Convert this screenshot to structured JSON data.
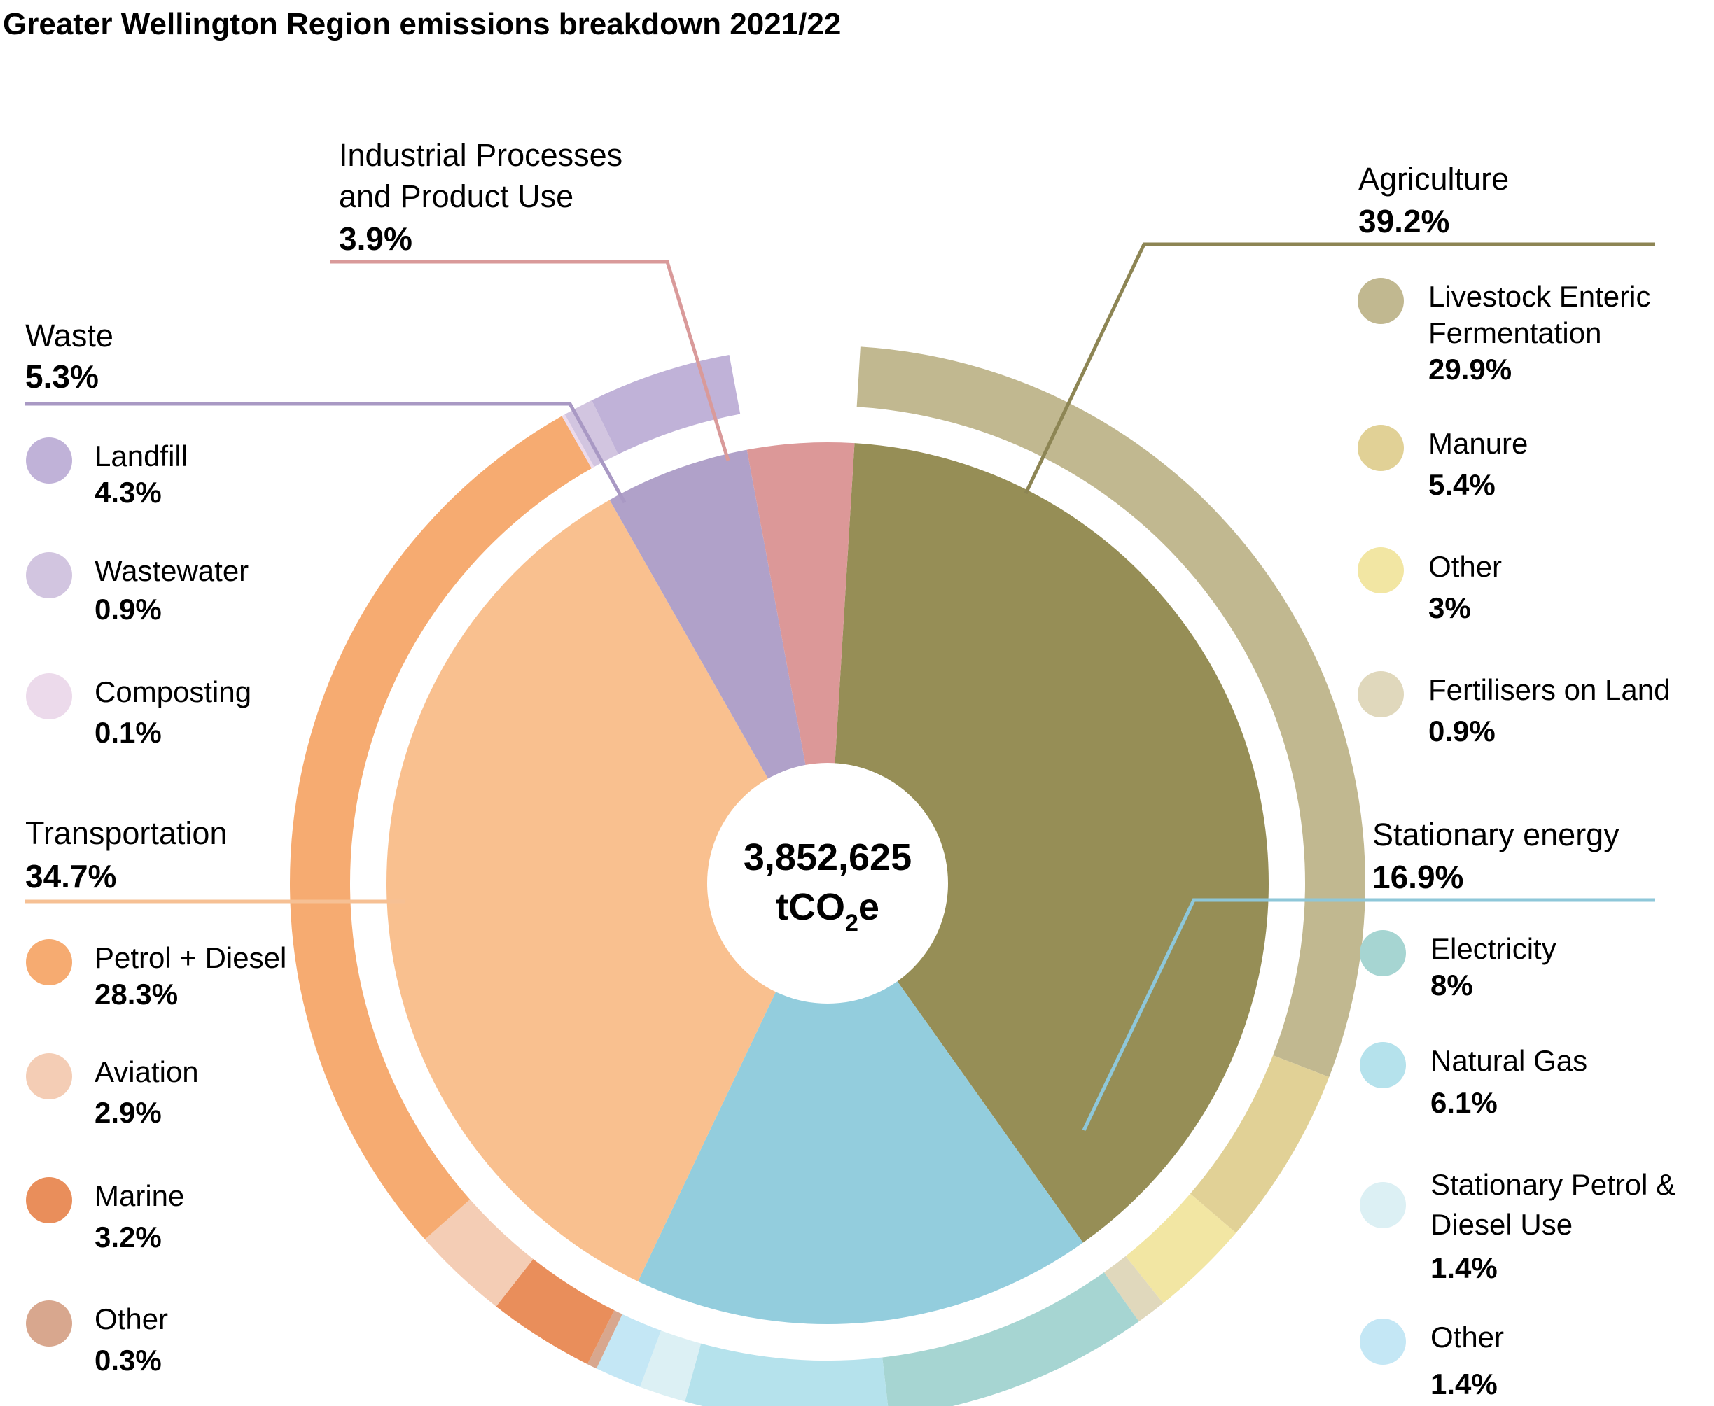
{
  "title": "Greater Wellington Region emissions breakdown 2021/22",
  "center": {
    "total": "3,852,625",
    "unit_prefix": "tCO",
    "unit_sub": "2",
    "unit_suffix": "e"
  },
  "colors": {
    "agriculture": "#968e56",
    "stationary": "#93cddd",
    "transport": "#f9c08f",
    "waste": "#b0a1c9",
    "ippu": "#dc9898"
  },
  "chart_data": {
    "type": "pie",
    "variant": "nested-donut",
    "total": "3,852,625 tCO2e",
    "groups": [
      {
        "key": "agriculture",
        "name": "Agriculture",
        "value": 39.2,
        "label": "39.2%",
        "color": "#968e56",
        "subcategories": [
          {
            "name": "Livestock Enteric Fermentation",
            "value": 29.9,
            "label": "29.9%",
            "color": "#c1b890"
          },
          {
            "name": "Manure",
            "value": 5.4,
            "label": "5.4%",
            "color": "#e1d196"
          },
          {
            "name": "Other",
            "value": 3,
            "label": "3%",
            "color": "#f2e6a3"
          },
          {
            "name": "Fertilisers on Land",
            "value": 0.9,
            "label": "0.9%",
            "color": "#e0d8bc"
          }
        ]
      },
      {
        "key": "stationary",
        "name": "Stationary energy",
        "value": 16.9,
        "label": "16.9%",
        "color": "#93cddd",
        "subcategories": [
          {
            "name": "Electricity",
            "value": 8,
            "label": "8%",
            "color": "#a6d5d2"
          },
          {
            "name": "Natural Gas",
            "value": 6.1,
            "label": "6.1%",
            "color": "#b5e2ec"
          },
          {
            "name": "Stationary Petrol & Diesel Use",
            "value": 1.4,
            "label": "1.4%",
            "color": "#dcf0f4"
          },
          {
            "name": "Other",
            "value": 1.4,
            "label": "1.4%",
            "color": "#c4e7f5"
          }
        ]
      },
      {
        "key": "transport",
        "name": "Transportation",
        "value": 34.7,
        "label": "34.7%",
        "color": "#f9c08f",
        "subcategories": [
          {
            "name": "Other",
            "value": 0.3,
            "label": "0.3%",
            "color": "#d8a78e"
          },
          {
            "name": "Marine",
            "value": 3.2,
            "label": "3.2%",
            "color": "#e98e5b"
          },
          {
            "name": "Aviation",
            "value": 2.9,
            "label": "2.9%",
            "color": "#f4cdb5"
          },
          {
            "name": "Petrol + Diesel",
            "value": 28.3,
            "label": "28.3%",
            "color": "#f6ab71"
          }
        ]
      },
      {
        "key": "waste",
        "name": "Waste",
        "value": 5.3,
        "label": "5.3%",
        "color": "#b0a1c9",
        "subcategories": [
          {
            "name": "Composting",
            "value": 0.1,
            "label": "0.1%",
            "color": "#ecdaeb"
          },
          {
            "name": "Wastewater",
            "value": 0.9,
            "label": "0.9%",
            "color": "#d2c5e0"
          },
          {
            "name": "Landfill",
            "value": 4.3,
            "label": "4.3%",
            "color": "#c0b2d8"
          }
        ]
      },
      {
        "key": "ippu",
        "name": "Industrial Processes and Product Use",
        "value": 3.9,
        "label": "3.9%",
        "color": "#dc9898",
        "subcategories": []
      }
    ]
  },
  "legend": {
    "agriculture": {
      "name": "Agriculture",
      "pct": "39.2%",
      "line_color": "#8d8554",
      "items": [
        {
          "name": "Livestock Enteric",
          "name2": "Fermentation",
          "pct": "29.9%",
          "color": "#c1b890"
        },
        {
          "name": "Manure",
          "pct": "5.4%",
          "color": "#e1d196"
        },
        {
          "name": "Other",
          "pct": "3%",
          "color": "#f2e6a3"
        },
        {
          "name": "Fertilisers on Land",
          "pct": "0.9%",
          "color": "#e0d8bc"
        }
      ]
    },
    "stationary": {
      "name": "Stationary energy",
      "pct": "16.9%",
      "line_color": "#8ec7d9",
      "items": [
        {
          "name": "Electricity",
          "pct": "8%",
          "color": "#a6d5d2"
        },
        {
          "name": "Natural Gas",
          "pct": "6.1%",
          "color": "#b5e2ec"
        },
        {
          "name": "Stationary Petrol &",
          "name2": "Diesel Use",
          "pct": "1.4%",
          "color": "#dcf0f4"
        },
        {
          "name": "Other",
          "pct": "1.4%",
          "color": "#c4e7f5"
        }
      ]
    },
    "waste": {
      "name": "Waste",
      "pct": "5.3%",
      "line_color": "#a999c4",
      "items": [
        {
          "name": "Landfill",
          "pct": "4.3%",
          "color": "#c0b2d8"
        },
        {
          "name": "Wastewater",
          "pct": "0.9%",
          "color": "#d2c5e0"
        },
        {
          "name": "Composting",
          "pct": "0.1%",
          "color": "#ecdaeb"
        }
      ]
    },
    "transport": {
      "name": "Transportation",
      "pct": "34.7%",
      "line_color": "#f6c094",
      "items": [
        {
          "name": "Petrol + Diesel",
          "pct": "28.3%",
          "color": "#f6ab71"
        },
        {
          "name": "Aviation",
          "pct": "2.9%",
          "color": "#f4cdb5"
        },
        {
          "name": "Marine",
          "pct": "3.2%",
          "color": "#e98e5b"
        },
        {
          "name": "Other",
          "pct": "0.3%",
          "color": "#d8a78e"
        }
      ]
    },
    "ippu": {
      "name": "Industrial Processes",
      "name2": "and Product Use",
      "pct": "3.9%",
      "line_color": "#d99a9a"
    }
  }
}
